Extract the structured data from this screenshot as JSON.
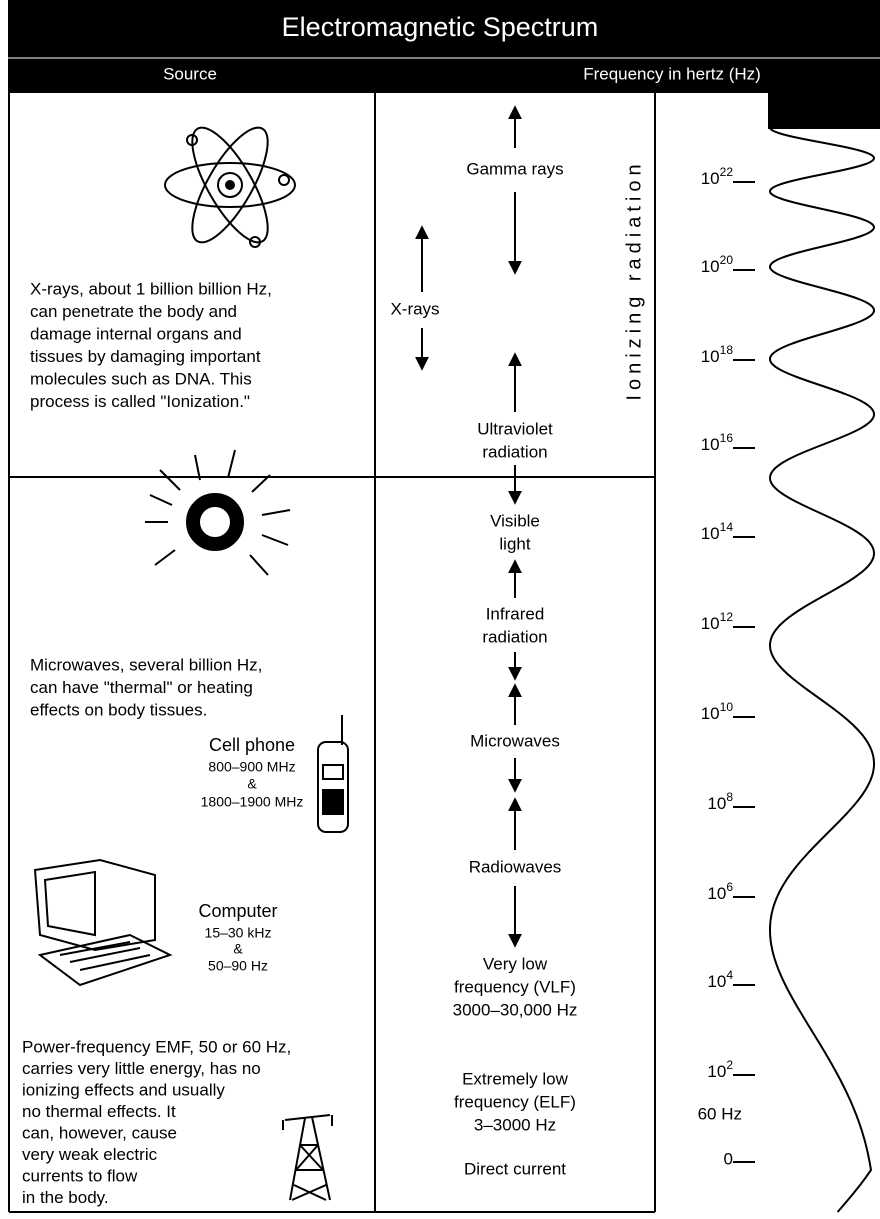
{
  "header": {
    "title": "Electromagnetic Spectrum",
    "source_heading": "Source",
    "frequency_heading": "Frequency in hertz (Hz)"
  },
  "source_notes": {
    "xrays": [
      "X-rays, about 1 billion billion Hz,",
      "can penetrate the body and",
      "damage internal organs and",
      "tissues by damaging important",
      "molecules such as DNA. This",
      "process is called \"Ionization.\""
    ],
    "microwaves": [
      "Microwaves, several billion Hz,",
      "can have \"thermal\" or heating",
      "effects on body tissues."
    ],
    "cell_phone": [
      "Cell phone",
      "800–900 MHz",
      "&",
      "1800–1900 MHz"
    ],
    "computer": [
      "Computer",
      "15–30 kHz",
      "&",
      "50–90 Hz"
    ],
    "power": [
      "Power-frequency EMF, 50 or 60 Hz,",
      "carries very little energy, has no",
      "ionizing effects and usually",
      "no thermal effects. It",
      "can, however, cause",
      "very weak electric",
      "currents to flow",
      "in the body."
    ]
  },
  "bands": [
    {
      "lines": [
        "Gamma rays"
      ]
    },
    {
      "lines": [
        "X-rays"
      ]
    },
    {
      "lines": [
        "Ultraviolet",
        "radiation"
      ]
    },
    {
      "lines": [
        "Visible",
        "light"
      ]
    },
    {
      "lines": [
        "Infrared",
        "radiation"
      ]
    },
    {
      "lines": [
        "Microwaves"
      ]
    },
    {
      "lines": [
        "Radiowaves"
      ]
    },
    {
      "lines": [
        "Very low",
        "frequency (VLF)",
        "3000–30,000 Hz"
      ]
    },
    {
      "lines": [
        "Extremely low",
        "frequency (ELF)",
        "3–3000 Hz"
      ]
    },
    {
      "lines": [
        "Direct current"
      ]
    }
  ],
  "vertical_label": "Ionizing radiation",
  "scale": [
    {
      "base": "10",
      "exp": "22"
    },
    {
      "base": "10",
      "exp": "20"
    },
    {
      "base": "10",
      "exp": "18"
    },
    {
      "base": "10",
      "exp": "16"
    },
    {
      "base": "10",
      "exp": "14"
    },
    {
      "base": "10",
      "exp": "12"
    },
    {
      "base": "10",
      "exp": "10"
    },
    {
      "base": "10",
      "exp": "8"
    },
    {
      "base": "10",
      "exp": "6"
    },
    {
      "base": "10",
      "exp": "4"
    },
    {
      "base": "10",
      "exp": "2"
    },
    {
      "text": "60 Hz"
    },
    {
      "text": "0"
    }
  ]
}
